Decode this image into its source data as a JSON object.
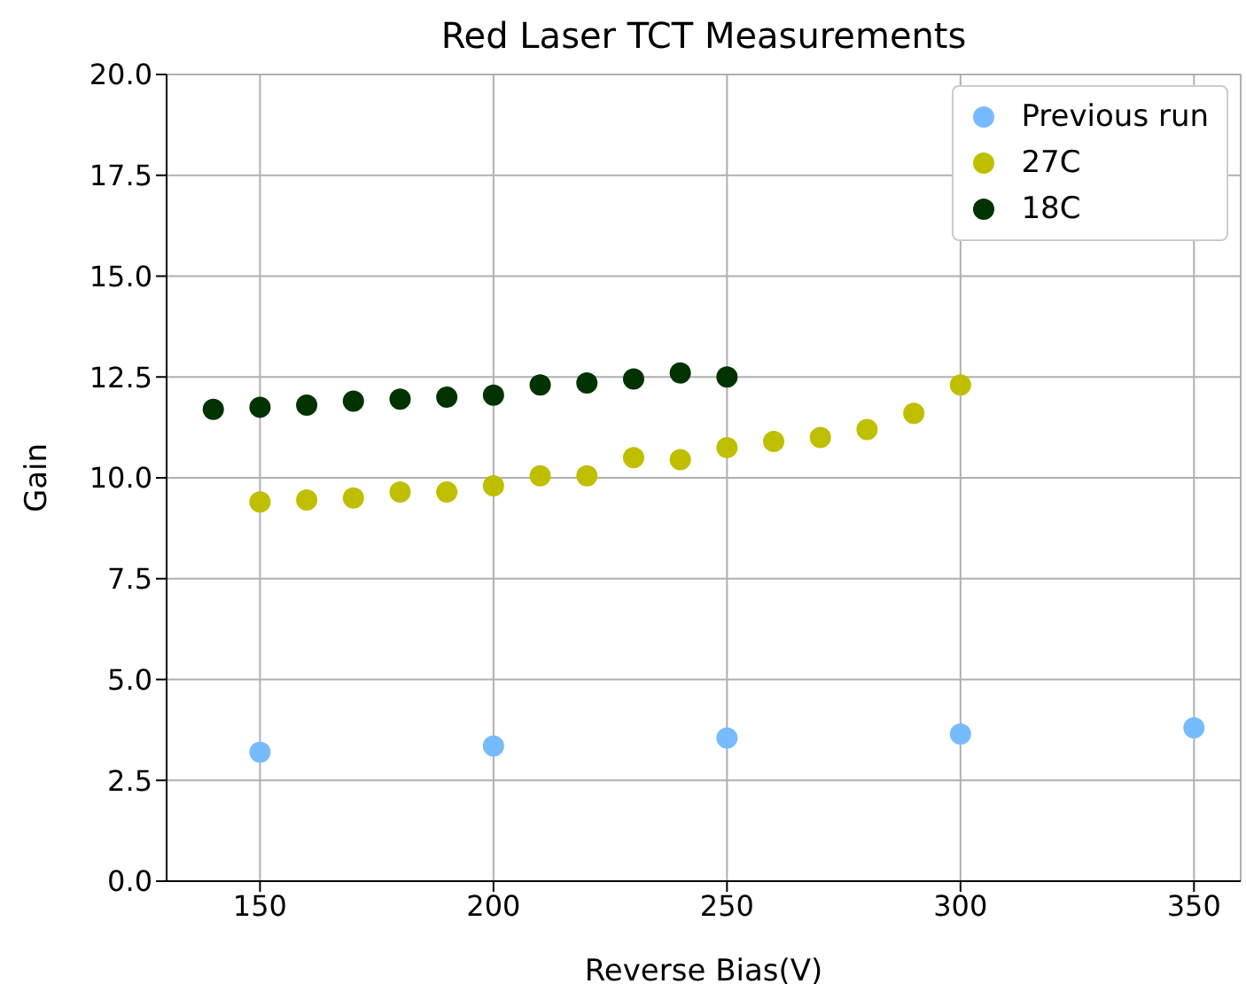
{
  "chart_data": {
    "type": "scatter",
    "title": "Red Laser TCT Measurements",
    "xlabel": "Reverse Bias(V)",
    "ylabel": "Gain",
    "xlim": [
      130,
      360
    ],
    "xticks": [
      150,
      200,
      250,
      300,
      350
    ],
    "ylim": [
      0,
      20
    ],
    "yticks": [
      {
        "value": 0,
        "label": "0.0"
      },
      {
        "value": 2.5,
        "label": "2.5"
      },
      {
        "value": 5,
        "label": "5.0"
      },
      {
        "value": 7.5,
        "label": "7.5"
      },
      {
        "value": 10,
        "label": "10.0"
      },
      {
        "value": 12.5,
        "label": "12.5"
      },
      {
        "value": 15,
        "label": "15.0"
      },
      {
        "value": 17.5,
        "label": "17.5"
      },
      {
        "value": 20,
        "label": "20.0"
      }
    ],
    "grid": true,
    "legend": "top right",
    "marker": "circle",
    "series": [
      {
        "name": "Previous run",
        "color": "#77bbff",
        "x": [
          150,
          200,
          250,
          300,
          350
        ],
        "values": [
          3.2,
          3.35,
          3.55,
          3.65,
          3.8
        ]
      },
      {
        "name": "27C",
        "color": "#bfbf00",
        "x": [
          150,
          160,
          170,
          180,
          190,
          200,
          210,
          220,
          230,
          240,
          250,
          260,
          270,
          280,
          290,
          300
        ],
        "values": [
          9.4,
          9.45,
          9.5,
          9.65,
          9.65,
          9.8,
          10.05,
          10.05,
          10.5,
          10.45,
          10.75,
          10.9,
          11.0,
          11.2,
          11.6,
          12.3
        ]
      },
      {
        "name": "18C",
        "color": "#003300",
        "x": [
          140,
          150,
          160,
          170,
          180,
          190,
          200,
          210,
          220,
          230,
          240,
          250
        ],
        "values": [
          11.7,
          11.75,
          11.8,
          11.9,
          11.95,
          12.0,
          12.05,
          12.3,
          12.35,
          12.45,
          12.6,
          12.5
        ]
      }
    ]
  }
}
